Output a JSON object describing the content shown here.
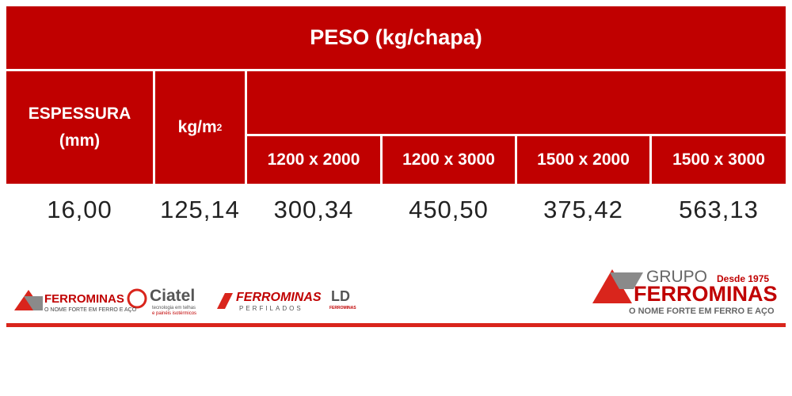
{
  "table": {
    "title": "PESO (kg/chapa)",
    "thickness_header": [
      "ESPESSURA",
      "(mm)"
    ],
    "area_header": {
      "text": "kg/m",
      "sup": "2"
    },
    "sizes": [
      "1200 x 2000",
      "1200 x 3000",
      "1500 x 2000",
      "1500 x 3000"
    ],
    "rows": [
      [
        "16,00",
        "125,14",
        "300,34",
        "450,50",
        "375,42",
        "563,13"
      ]
    ]
  },
  "footer": {
    "logos": [
      {
        "name": "FERROMINAS",
        "tagline": "O NOME FORTE EM FERRO E AÇO"
      },
      {
        "name": "Ciatel",
        "tagline": [
          "tecnologia em telhas",
          "e painéis isotérmicos"
        ]
      },
      {
        "name": "FERROMINAS",
        "tagline": "PERFILADOS"
      },
      {
        "name": "LD",
        "tagline": "FERROMINAS"
      }
    ],
    "brand": {
      "group": "GRUPO",
      "since": "Desde 1975",
      "name": "FERROMINAS",
      "tagline": "O NOME FORTE EM FERRO E AÇO"
    }
  }
}
